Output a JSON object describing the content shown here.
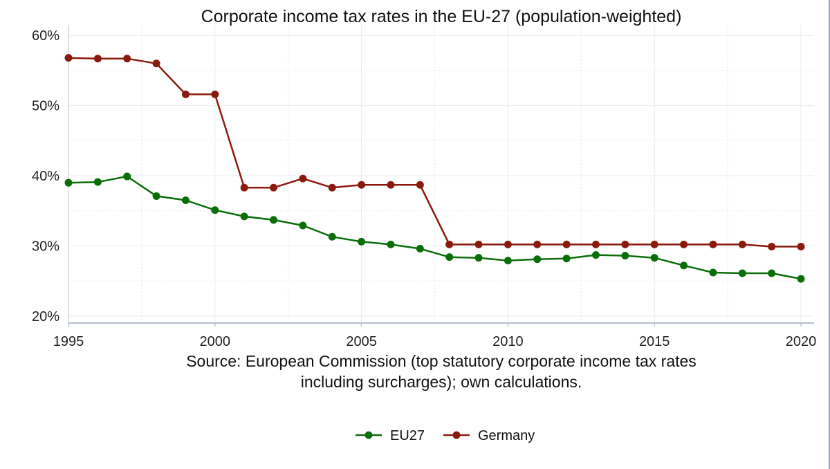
{
  "chart_data": {
    "type": "line",
    "title": "Corporate income tax rates in the EU-27 (population-weighted)",
    "xlabel": "",
    "ylabel": "",
    "x": [
      1995,
      1996,
      1997,
      1998,
      1999,
      2000,
      2001,
      2002,
      2003,
      2004,
      2005,
      2006,
      2007,
      2008,
      2009,
      2010,
      2011,
      2012,
      2013,
      2014,
      2015,
      2016,
      2017,
      2018,
      2019,
      2020
    ],
    "xlim": [
      1995,
      2020
    ],
    "ylim": [
      19,
      61.5
    ],
    "x_ticks": [
      1995,
      2000,
      2005,
      2010,
      2015,
      2020
    ],
    "x_tick_labels": [
      "1995",
      "2000",
      "2005",
      "2010",
      "2015",
      "2020"
    ],
    "y_ticks": [
      20,
      30,
      40,
      50,
      60
    ],
    "y_tick_labels": [
      "20%",
      "30%",
      "40%",
      "50%",
      "60%"
    ],
    "grid": true,
    "legend_position": "bottom",
    "series": [
      {
        "name": "EU27",
        "color": "#0b6e0b",
        "values": [
          39.0,
          39.1,
          39.9,
          37.1,
          36.5,
          35.1,
          34.2,
          33.7,
          32.9,
          31.3,
          30.6,
          30.2,
          29.6,
          28.4,
          28.3,
          27.9,
          28.1,
          28.2,
          28.7,
          28.6,
          28.3,
          27.2,
          26.2,
          26.1,
          26.1,
          25.3
        ]
      },
      {
        "name": "Germany",
        "color": "#8b1a0e",
        "values": [
          56.8,
          56.7,
          56.7,
          56.0,
          51.6,
          51.6,
          38.3,
          38.3,
          39.6,
          38.3,
          38.7,
          38.7,
          38.7,
          30.2,
          30.2,
          30.2,
          30.2,
          30.2,
          30.2,
          30.2,
          30.2,
          30.2,
          30.2,
          30.2,
          29.9,
          29.9
        ]
      }
    ],
    "source_lines": [
      "Source: European Commission (top statutory corporate income tax rates",
      "including surcharges); own calculations."
    ]
  }
}
